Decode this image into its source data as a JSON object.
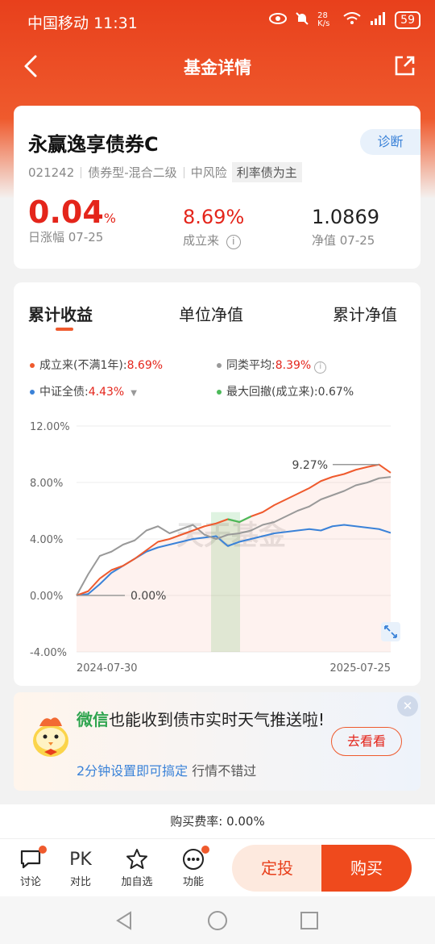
{
  "status_bar": {
    "carrier": "中国移动",
    "time": "11:31",
    "net_speed": "28 K/s",
    "battery": "59"
  },
  "nav": {
    "title": "基金详情"
  },
  "fund": {
    "name": "永赢逸享债券C",
    "diagnose_label": "诊断",
    "code": "021242",
    "type": "债券型-混合二级",
    "risk": "中风险",
    "tag": "利率债为主",
    "daily_change_value": "0.04",
    "daily_change_unit": "%",
    "daily_change_label": "日涨幅 07-25",
    "since_inception_value": "8.69%",
    "since_inception_label": "成立来",
    "nav_value": "1.0869",
    "nav_label": "净值 07-25"
  },
  "chart_tabs": [
    "累计收益",
    "单位净值",
    "累计净值"
  ],
  "legend": {
    "fund_label": "成立来(不满1年):",
    "fund_value": "8.69%",
    "peer_label": "同类平均:",
    "peer_value": "8.39%",
    "index_label": "中证全债:",
    "index_value": "4.43%",
    "drawdown_label": "最大回撤(成立来):",
    "drawdown_value": "0.67%"
  },
  "colors": {
    "fund": "#ef5a2d",
    "peer": "#999999",
    "index": "#3a82d8",
    "drawdown": "#4cba5a",
    "accent": "#e8401c"
  },
  "chart_data": {
    "type": "line",
    "x_start": "2024-07-30",
    "x_end": "2025-07-25",
    "y_ticks": [
      "12.00%",
      "8.00%",
      "4.00%",
      "0.00%",
      "-4.00%"
    ],
    "ylim": [
      -4,
      12
    ],
    "annotations": {
      "max": "9.27%",
      "start": "0.00%"
    },
    "watermark": "天天基金",
    "series": [
      {
        "name": "成立来(不满1年)",
        "color": "#ef5a2d",
        "values": [
          0,
          0.3,
          1.2,
          1.8,
          2.1,
          2.6,
          3.2,
          3.8,
          4.0,
          4.3,
          4.6,
          4.9,
          5.1,
          5.4,
          5.2,
          5.6,
          5.9,
          6.4,
          6.8,
          7.2,
          7.6,
          8.1,
          8.4,
          8.6,
          8.9,
          9.1,
          9.27,
          8.69
        ]
      },
      {
        "name": "同类平均",
        "color": "#999999",
        "values": [
          0,
          1.5,
          2.8,
          3.1,
          3.6,
          3.9,
          4.6,
          4.9,
          4.4,
          4.7,
          5.0,
          4.3,
          4.0,
          4.3,
          4.4,
          4.6,
          5.0,
          5.2,
          5.6,
          6.0,
          6.3,
          6.8,
          7.1,
          7.4,
          7.8,
          8.0,
          8.3,
          8.39
        ]
      },
      {
        "name": "中证全债",
        "color": "#3a82d8",
        "values": [
          0,
          0.1,
          0.8,
          1.6,
          2.1,
          2.6,
          3.1,
          3.4,
          3.6,
          3.8,
          4.0,
          4.1,
          4.2,
          3.5,
          3.8,
          4.0,
          4.2,
          4.4,
          4.5,
          4.6,
          4.7,
          4.6,
          4.9,
          5.0,
          4.9,
          4.8,
          4.7,
          4.43
        ]
      }
    ]
  },
  "banner": {
    "wechat": "微信",
    "title_rest": "也能收到债市实时天气推送啦!",
    "sub_blue": "2分钟设置即可搞定",
    "sub_rest": " 行情不错过",
    "button": "去看看"
  },
  "fee": "购买费率: 0.00%",
  "bottom": {
    "discuss": "讨论",
    "pk_icon": "PK",
    "compare": "对比",
    "add_watch": "加自选",
    "functions": "功能",
    "dingtou": "定投",
    "buy": "购买"
  }
}
